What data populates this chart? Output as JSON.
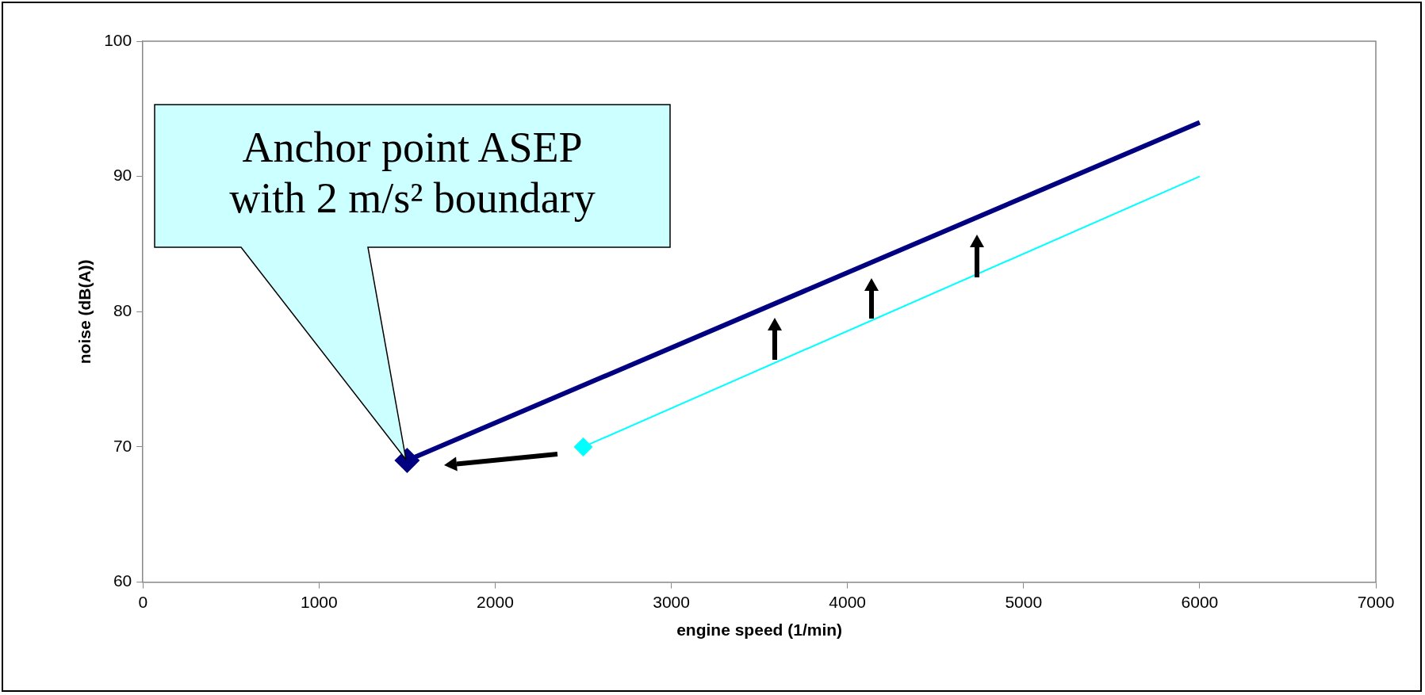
{
  "chart_data": {
    "type": "line",
    "xlabel": "engine speed (1/min)",
    "ylabel": "noise (dB(A))",
    "series": [
      {
        "color": "#000080",
        "x": [
          1500,
          6000
        ],
        "values": [
          69,
          94
        ]
      },
      {
        "color": "#00ffff",
        "x": [
          2500,
          6000
        ],
        "values": [
          70,
          90
        ]
      }
    ],
    "xlim": [
      0,
      7000
    ],
    "xticks": [
      0,
      1000,
      2000,
      3000,
      4000,
      5000,
      6000,
      7000
    ],
    "ylim": [
      60,
      100
    ],
    "yticks": [
      60,
      70,
      80,
      90,
      100
    ],
    "grid": false,
    "legend": false,
    "marker": "diamond",
    "line_style": "solid",
    "annotations": [
      "Anchor point ASEP with 2 m/s² boundary"
    ]
  }
}
